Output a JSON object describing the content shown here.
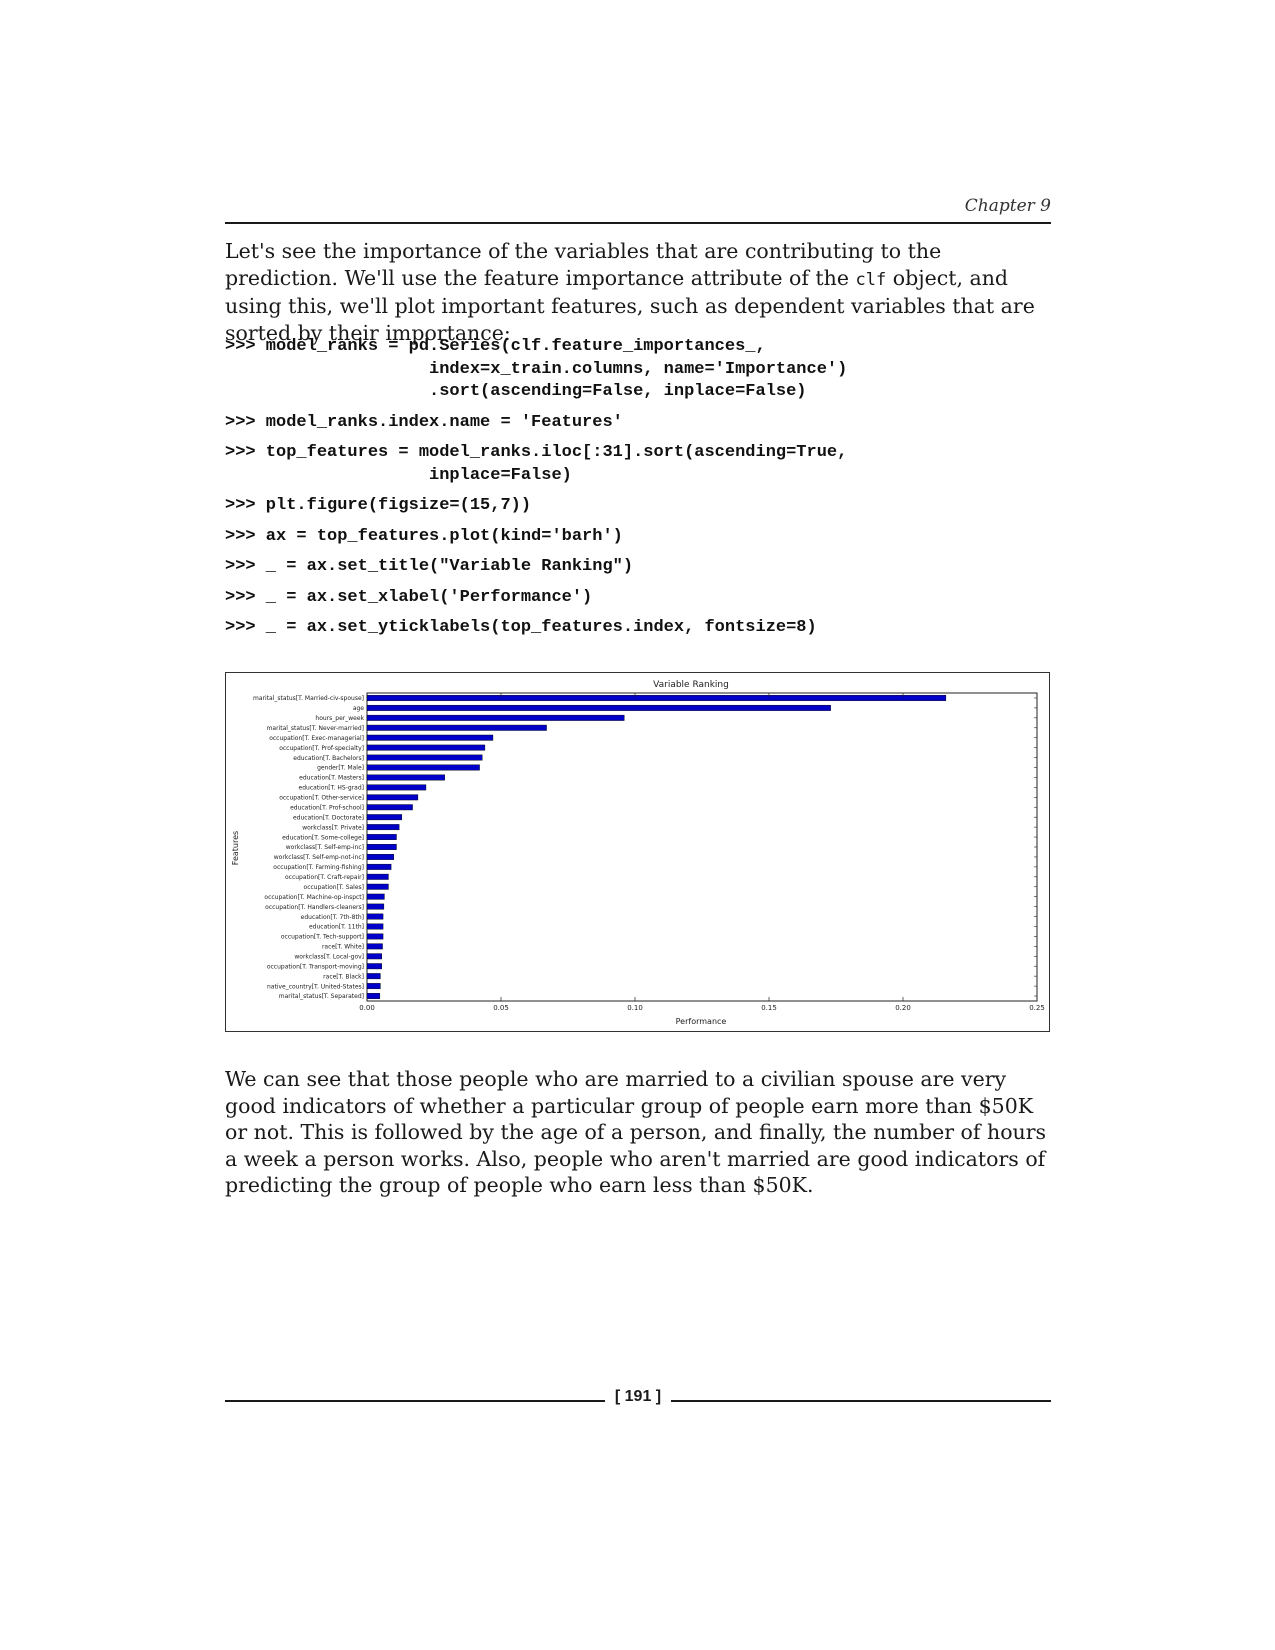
{
  "header": {
    "chapter": "Chapter 9"
  },
  "intro": {
    "pre": "Let's see the importance of the variables that are contributing to the prediction. We'll use the feature importance attribute of the ",
    "code": "clf",
    "post": " object, and using this, we'll plot important features, such as dependent variables that are sorted by their importance:"
  },
  "code_blocks": [
    ">>> model_ranks = pd.Series(clf.feature_importances_,\n                    index=x_train.columns, name='Importance')\n                    .sort(ascending=False, inplace=False)",
    ">>> model_ranks.index.name = 'Features'",
    ">>> top_features = model_ranks.iloc[:31].sort(ascending=True,\n                    inplace=False)",
    ">>> plt.figure(figsize=(15,7))",
    ">>> ax = top_features.plot(kind='barh')",
    ">>> _ = ax.set_title(\"Variable Ranking\")",
    ">>> _ = ax.set_xlabel('Performance')",
    ">>> _ = ax.set_yticklabels(top_features.index, fontsize=8)"
  ],
  "chart_data": {
    "type": "bar",
    "orientation": "horizontal",
    "title": "Variable Ranking",
    "xlabel": "Performance",
    "ylabel": "Features",
    "xlim": [
      0,
      0.25
    ],
    "xticks": [
      "0.00",
      "0.05",
      "0.10",
      "0.15",
      "0.20",
      "0.25"
    ],
    "bar_color": "#0000c8",
    "categories": [
      "marital_status[T. Married-civ-spouse]",
      "age",
      "hours_per_week",
      "marital_status[T. Never-married]",
      "occupation[T. Exec-managerial]",
      "occupation[T. Prof-specialty]",
      "education[T. Bachelors]",
      "gender[T. Male]",
      "education[T. Masters]",
      "education[T. HS-grad]",
      "occupation[T. Other-service]",
      "education[T. Prof-school]",
      "education[T. Doctorate]",
      "workclass[T. Private]",
      "education[T. Some-college]",
      "workclass[T. Self-emp-inc]",
      "workclass[T. Self-emp-not-inc]",
      "occupation[T. Farming-fishing]",
      "occupation[T. Craft-repair]",
      "occupation[T. Sales]",
      "occupation[T. Machine-op-inspct]",
      "occupation[T. Handlers-cleaners]",
      "education[T. 7th-8th]",
      "education[T. 11th]",
      "occupation[T. Tech-support]",
      "race[T. White]",
      "workclass[T. Local-gov]",
      "occupation[T. Transport-moving]",
      "race[T. Black]",
      "native_country[T. United-States]",
      "marital_status[T. Separated]"
    ],
    "values": [
      0.216,
      0.173,
      0.096,
      0.067,
      0.047,
      0.044,
      0.043,
      0.042,
      0.029,
      0.022,
      0.019,
      0.017,
      0.013,
      0.012,
      0.011,
      0.011,
      0.01,
      0.009,
      0.008,
      0.008,
      0.0065,
      0.0063,
      0.006,
      0.006,
      0.006,
      0.0058,
      0.0055,
      0.0055,
      0.005,
      0.005,
      0.0048
    ]
  },
  "conclusion": "We can see that those people who are married to a civilian spouse are very good indicators of whether a particular group of people earn more than $50K or not. This is followed by the age of a person, and finally, the number of hours a week a person works. Also, people who aren't married are good indicators of predicting the group of people who earn less than $50K.",
  "footer": {
    "page_number": "[ 191 ]"
  }
}
